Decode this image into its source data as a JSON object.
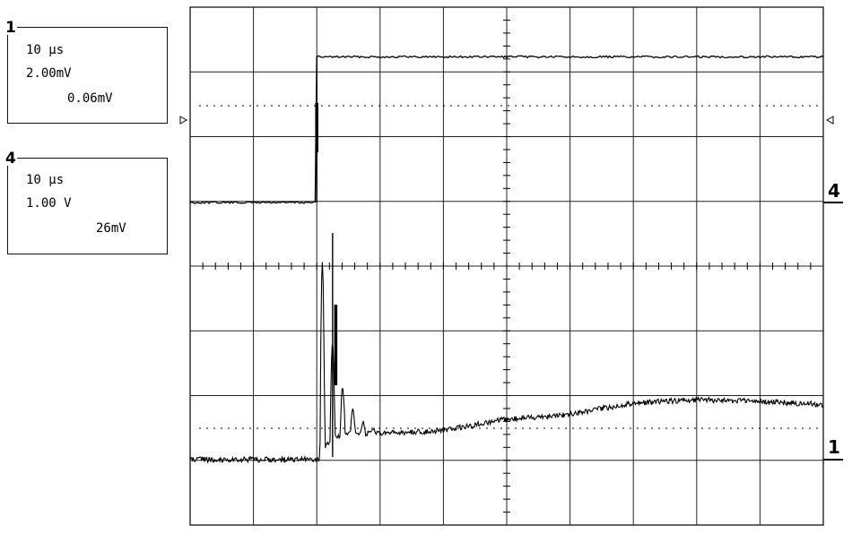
{
  "channels": [
    {
      "number": "1",
      "timebase": "10 µs",
      "vscale": "2.00mV",
      "offset": "0.06mV"
    },
    {
      "number": "4",
      "timebase": "10 µs",
      "vscale": "1.00 V",
      "offset": "26mV"
    }
  ],
  "markers": {
    "ch4": "4",
    "ch1": "1"
  },
  "chart_data": {
    "type": "line",
    "grid": true,
    "divisions": {
      "x": 10,
      "y": 8
    },
    "x_unit": "µs",
    "xlim": [
      0,
      100
    ],
    "series": [
      {
        "channel": "4",
        "unit": "V",
        "step_time": 20,
        "x": [
          0,
          19.9,
          20,
          100
        ],
        "y": [
          0.0,
          0.0,
          2.25,
          2.25
        ]
      },
      {
        "channel": "1",
        "unit": "mV",
        "ringing_peak": 7.0,
        "x": [
          0,
          20,
          22.5,
          30,
          40,
          50,
          60,
          70,
          80,
          90,
          100
        ],
        "y": [
          0.0,
          0.0,
          7.0,
          0.8,
          0.9,
          1.25,
          1.4,
          1.75,
          1.85,
          1.8,
          1.7
        ]
      }
    ]
  }
}
